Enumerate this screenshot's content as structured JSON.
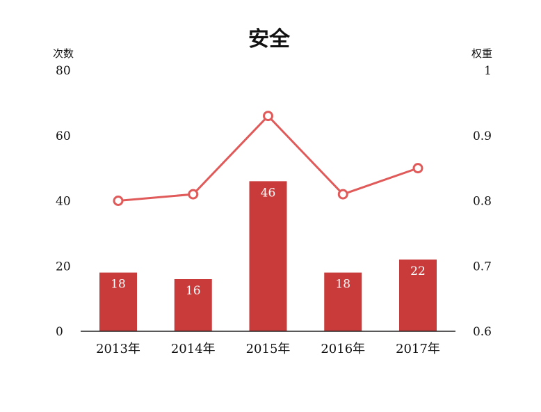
{
  "chart_data": {
    "type": "bar",
    "title": "安全",
    "categories": [
      "2013年",
      "2014年",
      "2015年",
      "2016年",
      "2017年"
    ],
    "bar_series": {
      "values": [
        18,
        16,
        46,
        18,
        22
      ],
      "color": "#c93b3b"
    },
    "line_series": {
      "values": [
        0.8,
        0.81,
        0.93,
        0.81,
        0.85
      ],
      "color": "#e05a5a"
    },
    "y_left": {
      "label": "次数",
      "range": [
        0,
        80
      ],
      "ticks": [
        "0",
        "20",
        "40",
        "60",
        "80"
      ]
    },
    "y_right": {
      "label": "权重",
      "range": [
        0.6,
        1
      ],
      "ticks": [
        "0.6",
        "0.7",
        "0.8",
        "0.9",
        "1"
      ]
    },
    "grid": false
  }
}
